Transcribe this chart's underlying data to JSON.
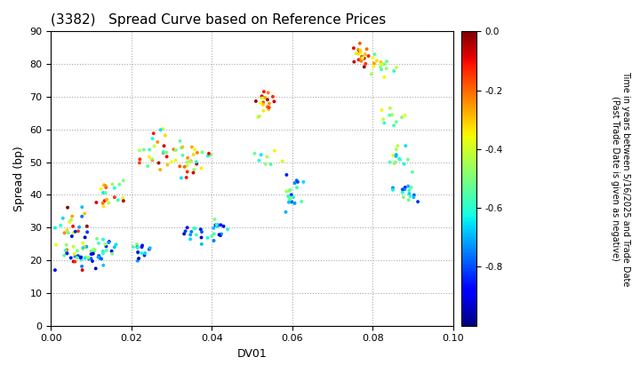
{
  "title": "(3382)   Spread Curve based on Reference Prices",
  "xlabel": "DV01",
  "ylabel": "Spread (bp)",
  "xlim": [
    0.0,
    0.1
  ],
  "ylim": [
    0,
    90
  ],
  "xticks": [
    0.0,
    0.02,
    0.04,
    0.06,
    0.08,
    0.1
  ],
  "yticks": [
    0,
    10,
    20,
    30,
    40,
    50,
    60,
    70,
    80,
    90
  ],
  "colorbar_label_line1": "Time in years between 5/16/2025 and Trade Date",
  "colorbar_label_line2": "(Past Trade Date is given as negative)",
  "cmap": "jet",
  "vmin": -1.0,
  "vmax": 0.0,
  "colorbar_ticks": [
    0.0,
    -0.2,
    -0.4,
    -0.6,
    -0.8
  ],
  "background_color": "#ffffff",
  "grid_color": "#aaaaaa",
  "marker_size": 8,
  "point_groups": [
    {
      "dv01_range": [
        0.001,
        0.009
      ],
      "spread_range": [
        17,
        40
      ],
      "time_range": [
        -0.9,
        0.0
      ],
      "n": 35
    },
    {
      "dv01_range": [
        0.004,
        0.013
      ],
      "spread_range": [
        16,
        27
      ],
      "time_range": [
        -0.95,
        -0.3
      ],
      "n": 30
    },
    {
      "dv01_range": [
        0.011,
        0.018
      ],
      "spread_range": [
        35,
        45
      ],
      "time_range": [
        -0.65,
        -0.05
      ],
      "n": 20
    },
    {
      "dv01_range": [
        0.01,
        0.017
      ],
      "spread_range": [
        19,
        27
      ],
      "time_range": [
        -0.95,
        -0.45
      ],
      "n": 18
    },
    {
      "dv01_range": [
        0.02,
        0.025
      ],
      "spread_range": [
        19,
        26
      ],
      "time_range": [
        -0.95,
        -0.5
      ],
      "n": 15
    },
    {
      "dv01_range": [
        0.022,
        0.031
      ],
      "spread_range": [
        44,
        61
      ],
      "time_range": [
        -0.65,
        -0.05
      ],
      "n": 28
    },
    {
      "dv01_range": [
        0.03,
        0.04
      ],
      "spread_range": [
        44,
        59
      ],
      "time_range": [
        -0.65,
        -0.05
      ],
      "n": 28
    },
    {
      "dv01_range": [
        0.033,
        0.04
      ],
      "spread_range": [
        24,
        33
      ],
      "time_range": [
        -0.95,
        -0.5
      ],
      "n": 15
    },
    {
      "dv01_range": [
        0.038,
        0.044
      ],
      "spread_range": [
        26,
        33
      ],
      "time_range": [
        -0.95,
        -0.5
      ],
      "n": 15
    },
    {
      "dv01_range": [
        0.05,
        0.056
      ],
      "spread_range": [
        63,
        72
      ],
      "time_range": [
        -0.45,
        -0.02
      ],
      "n": 20
    },
    {
      "dv01_range": [
        0.05,
        0.058
      ],
      "spread_range": [
        49,
        56
      ],
      "time_range": [
        -0.65,
        -0.35
      ],
      "n": 8
    },
    {
      "dv01_range": [
        0.057,
        0.063
      ],
      "spread_range": [
        34,
        48
      ],
      "time_range": [
        -0.85,
        -0.45
      ],
      "n": 20
    },
    {
      "dv01_range": [
        0.074,
        0.081
      ],
      "spread_range": [
        78,
        87
      ],
      "time_range": [
        -0.4,
        -0.02
      ],
      "n": 22
    },
    {
      "dv01_range": [
        0.079,
        0.086
      ],
      "spread_range": [
        76,
        83
      ],
      "time_range": [
        -0.6,
        -0.3
      ],
      "n": 14
    },
    {
      "dv01_range": [
        0.081,
        0.088
      ],
      "spread_range": [
        60,
        67
      ],
      "time_range": [
        -0.6,
        -0.35
      ],
      "n": 10
    },
    {
      "dv01_range": [
        0.083,
        0.09
      ],
      "spread_range": [
        47,
        55
      ],
      "time_range": [
        -0.7,
        -0.4
      ],
      "n": 14
    },
    {
      "dv01_range": [
        0.085,
        0.092
      ],
      "spread_range": [
        37,
        44
      ],
      "time_range": [
        -0.85,
        -0.5
      ],
      "n": 16
    }
  ]
}
